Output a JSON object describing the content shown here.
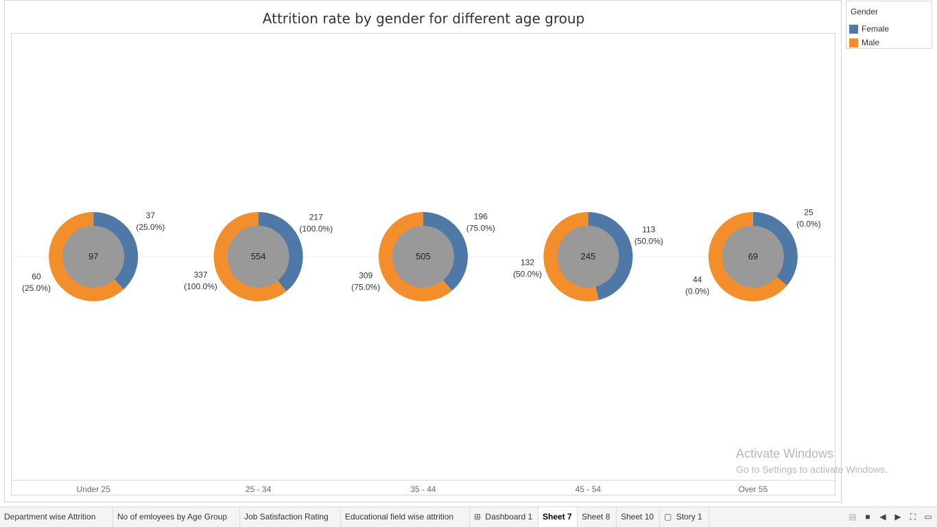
{
  "chart_data": {
    "type": "donut",
    "title": "Attrition rate by gender for different age group",
    "categories": [
      "Under 25",
      "25 - 34",
      "35 - 44",
      "45 - 54",
      "Over 55"
    ],
    "totals": [
      97,
      554,
      505,
      245,
      69
    ],
    "series": [
      {
        "name": "Female",
        "color": "#4e79a7",
        "values": [
          37,
          217,
          196,
          113,
          25
        ],
        "pct_labels": [
          "(25.0%)",
          "(100.0%)",
          "(75.0%)",
          "(50.0%)",
          "(0.0%)"
        ]
      },
      {
        "name": "Male",
        "color": "#f28e2b",
        "values": [
          60,
          337,
          309,
          132,
          44
        ],
        "pct_labels": [
          "(25.0%)",
          "(100.0%)",
          "(75.0%)",
          "(50.0%)",
          "(0.0%)"
        ]
      }
    ],
    "center_color": "#999999",
    "legend_title": "Gender",
    "legend_placement": "top-right"
  },
  "watermark": {
    "title": "Activate Windows",
    "subtitle": "Go to Settings to activate Windows."
  },
  "tabs": [
    {
      "label": "Department wise  Attrition",
      "icon": ""
    },
    {
      "label": "No of emloyees by Age Group",
      "icon": ""
    },
    {
      "label": "Job Satisfaction Rating",
      "icon": ""
    },
    {
      "label": "Educational field wise attrition",
      "icon": ""
    },
    {
      "label": "Dashboard 1",
      "icon": "dashboard-icon"
    },
    {
      "label": "Sheet 7",
      "icon": "",
      "active": true
    },
    {
      "label": "Sheet 8",
      "icon": ""
    },
    {
      "label": "Sheet 10",
      "icon": ""
    },
    {
      "label": "Story 1",
      "icon": "story-icon"
    }
  ]
}
